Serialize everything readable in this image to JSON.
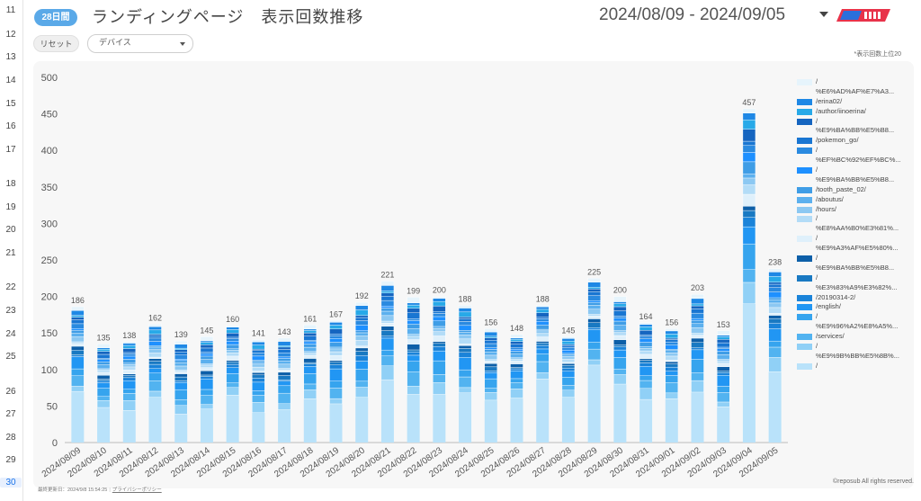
{
  "row_numbers": [
    {
      "n": "11",
      "y": 6
    },
    {
      "n": "12",
      "y": 33
    },
    {
      "n": "13",
      "y": 58
    },
    {
      "n": "14",
      "y": 84
    },
    {
      "n": "15",
      "y": 110
    },
    {
      "n": "16",
      "y": 135
    },
    {
      "n": "17",
      "y": 161
    },
    {
      "n": "18",
      "y": 199
    },
    {
      "n": "19",
      "y": 225
    },
    {
      "n": "20",
      "y": 250
    },
    {
      "n": "21",
      "y": 276
    },
    {
      "n": "22",
      "y": 314
    },
    {
      "n": "23",
      "y": 340
    },
    {
      "n": "24",
      "y": 366
    },
    {
      "n": "25",
      "y": 391
    },
    {
      "n": "26",
      "y": 430
    },
    {
      "n": "27",
      "y": 455
    },
    {
      "n": "28",
      "y": 481
    },
    {
      "n": "29",
      "y": 506
    },
    {
      "n": "30",
      "y": 531
    }
  ],
  "header": {
    "badge": "28日間",
    "title": "ランディングページ　表示回数推移",
    "date_range": "2024/08/09 - 2024/09/05",
    "logo_text": "レポサブ"
  },
  "controls": {
    "reset_label": "リセット",
    "device_label": "デバイス"
  },
  "note": "*表示回数上位20",
  "copyright": "©reposub All rights reserved.",
  "footer": {
    "updated": "最終更新日：2024/9/8 15:54:25",
    "privacy": "プライバシーポリシー"
  },
  "chart_data": {
    "type": "bar",
    "stacked": true,
    "ylim": [
      0,
      500
    ],
    "yticks": [
      0,
      50,
      100,
      150,
      200,
      250,
      300,
      350,
      400,
      450,
      500
    ],
    "categories": [
      "2024/08/09",
      "2024/08/10",
      "2024/08/11",
      "2024/08/12",
      "2024/08/13",
      "2024/08/14",
      "2024/08/15",
      "2024/08/16",
      "2024/08/17",
      "2024/08/18",
      "2024/08/19",
      "2024/08/20",
      "2024/08/21",
      "2024/08/22",
      "2024/08/23",
      "2024/08/24",
      "2024/08/25",
      "2024/08/26",
      "2024/08/27",
      "2024/08/28",
      "2024/08/29",
      "2024/08/30",
      "2024/08/31",
      "2024/09/01",
      "2024/09/02",
      "2024/09/03",
      "2024/09/04",
      "2024/09/05"
    ],
    "totals": [
      186,
      135,
      138,
      162,
      139,
      145,
      160,
      141,
      143,
      161,
      167,
      192,
      221,
      199,
      200,
      188,
      156,
      148,
      188,
      145,
      225,
      200,
      164,
      156,
      203,
      153,
      457,
      238
    ],
    "base_series_value": [
      70,
      48,
      44,
      62,
      39,
      46,
      65,
      41,
      45,
      60,
      53,
      62,
      86,
      66,
      66,
      68,
      58,
      61,
      87,
      62,
      106,
      80,
      59,
      60,
      69,
      49,
      190,
      97
    ],
    "legend_position": "right",
    "legend": [
      {
        "label": "/",
        "color": "#e6f4fc"
      },
      {
        "label": "%E6%AD%AF%E7%A3...",
        "color": null
      },
      {
        "label": "/erina02/",
        "color": "#1e88e5"
      },
      {
        "label": "/author/iinoerina/",
        "color": "#27a9e8"
      },
      {
        "label": "/",
        "color": "#1565c0"
      },
      {
        "label": "%E9%BA%BB%E5%B8...",
        "color": null
      },
      {
        "label": "/pokemon_go/",
        "color": "#1976d2"
      },
      {
        "label": "/",
        "color": "#2a8ae0"
      },
      {
        "label": "%EF%BC%92%EF%BC%...",
        "color": null
      },
      {
        "label": "/",
        "color": "#1e90ff"
      },
      {
        "label": "%E9%BA%BB%E5%B8...",
        "color": null
      },
      {
        "label": "/tooth_paste_02/",
        "color": "#3f9de6"
      },
      {
        "label": "/aboutus/",
        "color": "#5cb0ee"
      },
      {
        "label": "/hours/",
        "color": "#8cc8f2"
      },
      {
        "label": "/",
        "color": "#b3dcf7"
      },
      {
        "label": "%E8%AA%B0%E3%81%...",
        "color": null
      },
      {
        "label": "/",
        "color": "#dff0fb"
      },
      {
        "label": "%E9%A3%AF%E5%80%...",
        "color": null
      },
      {
        "label": "/",
        "color": "#0d5fa8"
      },
      {
        "label": "%E9%BA%BB%E5%B8...",
        "color": null
      },
      {
        "label": "/",
        "color": "#1979c2"
      },
      {
        "label": "%E3%83%A9%E3%82%...",
        "color": null
      },
      {
        "label": "/20190314-2/",
        "color": "#1a83d9"
      },
      {
        "label": "/english/",
        "color": "#2196f3"
      },
      {
        "label": "/",
        "color": "#36a4ee"
      },
      {
        "label": "%E9%96%A2%E8%A5%...",
        "color": null
      },
      {
        "label": "/services/",
        "color": "#52b3f0"
      },
      {
        "label": "/",
        "color": "#90d0f6"
      },
      {
        "label": "%E9%9B%BB%E5%8B%...",
        "color": null
      },
      {
        "label": "/",
        "color": "#b9e2fa"
      }
    ],
    "colors": {
      "base": "#b9e2fa",
      "palette": [
        "#90d0f6",
        "#52b3f0",
        "#36a4ee",
        "#2196f3",
        "#1a83d9",
        "#1979c2",
        "#0d5fa8",
        "#dff0fb",
        "#b3dcf7",
        "#8cc8f2",
        "#5cb0ee",
        "#3f9de6",
        "#1e90ff",
        "#2a8ae0",
        "#1976d2",
        "#1565c0",
        "#27a9e8",
        "#1e88e5",
        "#e6f4fc"
      ]
    }
  }
}
